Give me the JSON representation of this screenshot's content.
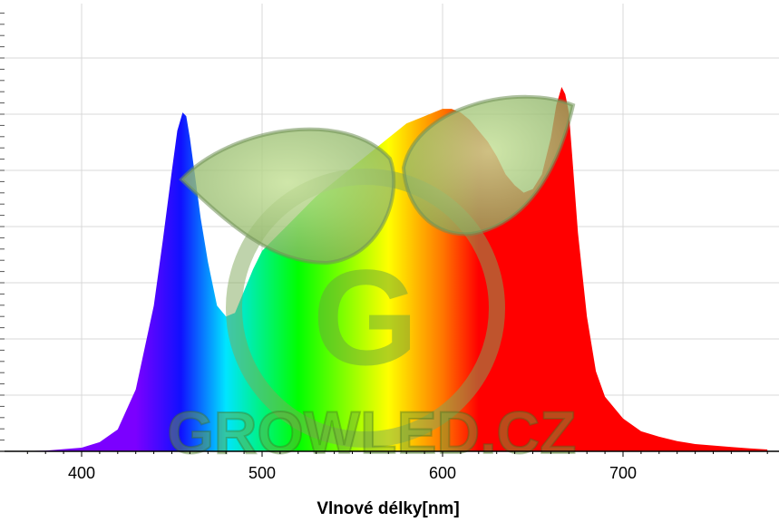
{
  "chart_data": {
    "type": "area",
    "title": "",
    "xlabel": "Vlnové délky[nm]",
    "ylabel": "",
    "xlim": [
      360,
      780
    ],
    "ylim": [
      0,
      1
    ],
    "x_ticks": [
      400,
      500,
      600,
      700
    ],
    "x_tick_labels": [
      "400",
      "500",
      "600",
      "700"
    ],
    "grid": true,
    "legend": "none",
    "series": [
      {
        "x": [
          360,
          380,
          400,
          410,
          420,
          430,
          440,
          445,
          450,
          453,
          456,
          458,
          460,
          463,
          466,
          470,
          475,
          480,
          485,
          490,
          495,
          500,
          510,
          520,
          530,
          540,
          550,
          560,
          570,
          575,
          580,
          585,
          590,
          595,
          600,
          605,
          610,
          615,
          620,
          625,
          630,
          635,
          640,
          645,
          650,
          655,
          660,
          663,
          666,
          668,
          670,
          672,
          675,
          680,
          685,
          690,
          700,
          710,
          720,
          730,
          740,
          750,
          760,
          770,
          780
        ],
        "values": [
          0.0,
          0.002,
          0.01,
          0.025,
          0.06,
          0.17,
          0.4,
          0.58,
          0.77,
          0.88,
          0.93,
          0.92,
          0.86,
          0.75,
          0.64,
          0.52,
          0.4,
          0.37,
          0.38,
          0.44,
          0.5,
          0.55,
          0.6,
          0.65,
          0.7,
          0.74,
          0.78,
          0.82,
          0.86,
          0.88,
          0.9,
          0.91,
          0.92,
          0.93,
          0.94,
          0.94,
          0.93,
          0.91,
          0.88,
          0.85,
          0.81,
          0.76,
          0.73,
          0.71,
          0.72,
          0.76,
          0.86,
          0.95,
          1.0,
          0.98,
          0.93,
          0.8,
          0.6,
          0.37,
          0.22,
          0.15,
          0.09,
          0.055,
          0.04,
          0.028,
          0.02,
          0.016,
          0.012,
          0.008,
          0.005
        ],
        "fill": "wavelength-spectrum-gradient"
      }
    ],
    "spectrum_colors": [
      "#7b00ff",
      "#1010ff",
      "#00e5ff",
      "#00ff00",
      "#ffff00",
      "#ff7700",
      "#ff0000"
    ],
    "watermark": {
      "text": "GROWLED.CZ",
      "letter": "G",
      "icon": "leaf-logo-icon",
      "color": "#6aa33c"
    }
  }
}
